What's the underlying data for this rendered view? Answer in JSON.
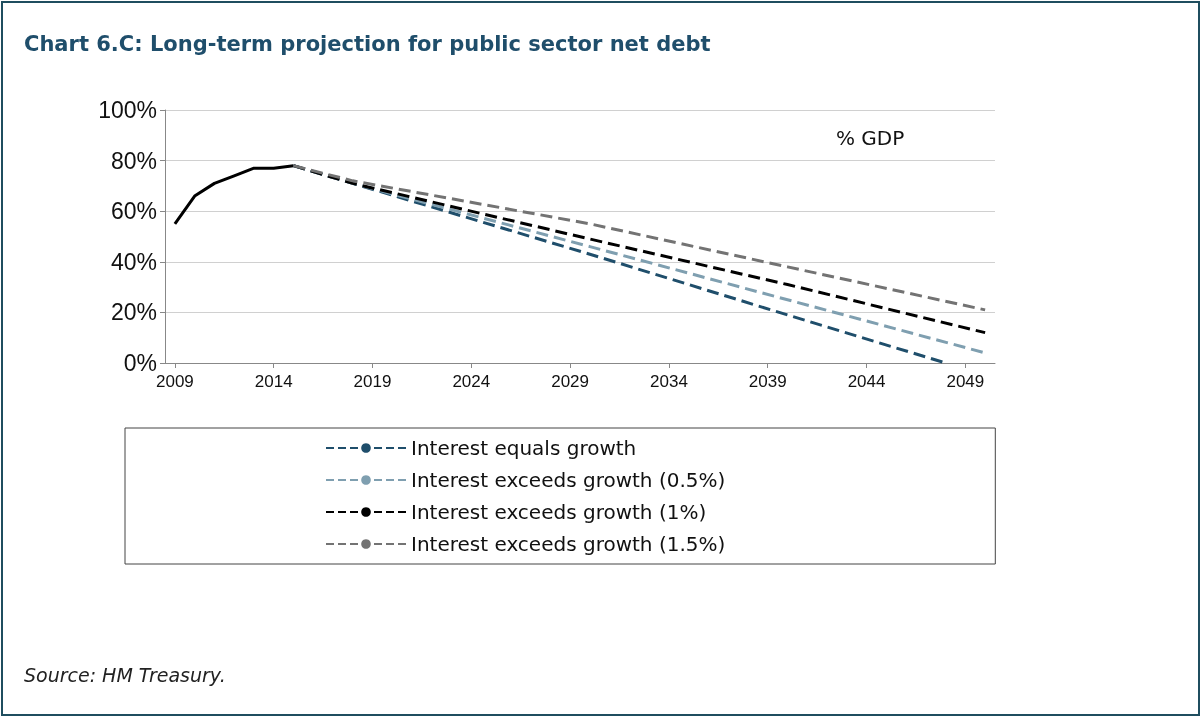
{
  "chart_data": {
    "type": "line",
    "title": "Chart 6.C: Long-term projection for public sector net debt",
    "x": [
      2009,
      2010,
      2011,
      2012,
      2013,
      2014,
      2015
    ],
    "series": [
      {
        "color": "#000000",
        "line_style": "solid",
        "values": [
          55,
          66,
          71,
          74,
          77,
          77,
          78
        ]
      },
      {
        "name": "Interest equals growth",
        "color": "#1f4e6b",
        "line_style": "dashed",
        "x": [
          2015,
          2018,
          2030,
          2040,
          2048
        ],
        "values": [
          78,
          71,
          43,
          19,
          0
        ]
      },
      {
        "name": "Interest exceeds growth (0.5%)",
        "color": "#7f9fb0",
        "line_style": "dashed",
        "x": [
          2015,
          2018,
          2030,
          2040,
          2050
        ],
        "values": [
          78,
          71,
          46,
          25,
          4
        ]
      },
      {
        "name": "Interest exceeds growth (1%)",
        "color": "#000000",
        "line_style": "dashed",
        "x": [
          2015,
          2018,
          2030,
          2040,
          2050
        ],
        "values": [
          78,
          71,
          49,
          31,
          12
        ]
      },
      {
        "name": "Interest exceeds growth (1.5%)",
        "color": "#737373",
        "line_style": "dashed",
        "x": [
          2015,
          2018,
          2030,
          2040,
          2050
        ],
        "values": [
          78,
          72,
          55,
          38,
          21
        ]
      }
    ],
    "xlim": [
      2008.5,
      2050.5
    ],
    "xticks": [
      2009,
      2014,
      2019,
      2024,
      2029,
      2034,
      2039,
      2044,
      2049
    ],
    "ylim": [
      0,
      100
    ],
    "yticks": [
      {
        "value": 0,
        "label": "0%"
      },
      {
        "value": 20,
        "label": "20%"
      },
      {
        "value": 40,
        "label": "40%"
      },
      {
        "value": 60,
        "label": "60%"
      },
      {
        "value": 80,
        "label": "80%"
      },
      {
        "value": 100,
        "label": "100%"
      }
    ],
    "grid": "y",
    "legend": "bottom",
    "marker": "none",
    "annotations": [
      "% GDP",
      "Source: HM Treasury."
    ]
  }
}
